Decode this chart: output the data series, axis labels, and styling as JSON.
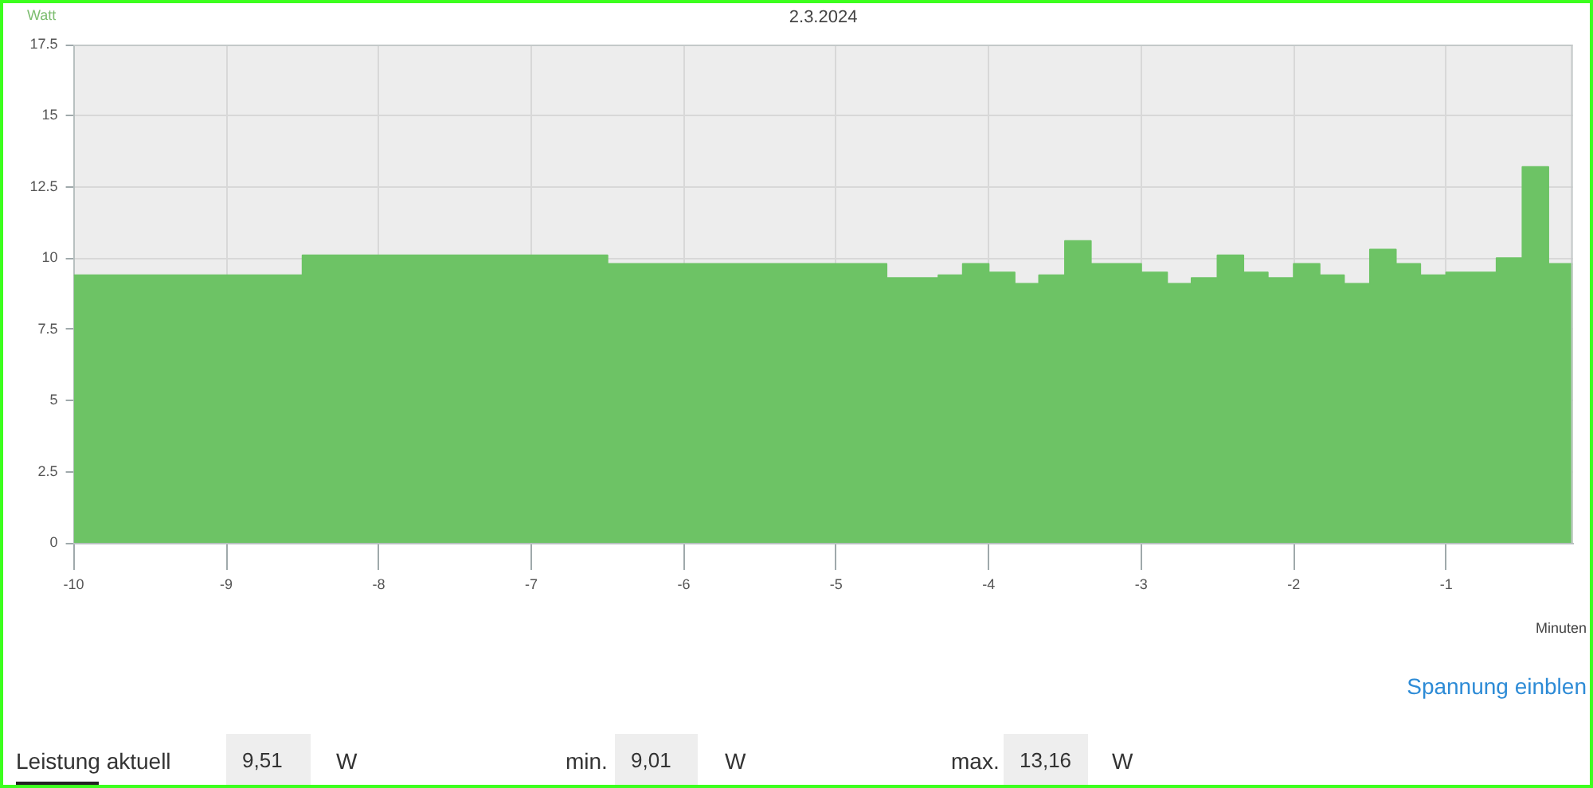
{
  "chart_data": {
    "type": "area",
    "title": "2.3.2024",
    "ylabel": "Watt",
    "xlabel": "Minuten",
    "x": [
      -10,
      -8.5,
      -8.5,
      -6.5,
      -6.5,
      -4.67,
      -4.67,
      -4.33,
      -4.33,
      -4.17,
      -4.17,
      -4,
      -4,
      -3.83,
      -3.83,
      -3.67,
      -3.67,
      -3.5,
      -3.5,
      -3.33,
      -3.33,
      -3,
      -3,
      -2.83,
      -2.83,
      -2.67,
      -2.67,
      -2.5,
      -2.5,
      -2.33,
      -2.33,
      -2.17,
      -2.17,
      -2,
      -2,
      -1.83,
      -1.83,
      -1.67,
      -1.67,
      -1.5,
      -1.5,
      -1.33,
      -1.33,
      -1.17,
      -1.17,
      -1,
      -1,
      -0.67,
      -0.67,
      -0.5,
      -0.5,
      -0.33,
      -0.33,
      -0.17
    ],
    "values": [
      9.4,
      9.4,
      10.1,
      10.1,
      9.8,
      9.8,
      9.3,
      9.3,
      9.4,
      9.4,
      9.8,
      9.8,
      9.5,
      9.5,
      9.1,
      9.1,
      9.4,
      9.4,
      10.6,
      10.6,
      9.8,
      9.8,
      9.5,
      9.5,
      9.1,
      9.1,
      9.3,
      9.3,
      10.1,
      10.1,
      9.5,
      9.5,
      9.3,
      9.3,
      9.8,
      9.8,
      9.4,
      9.4,
      9.1,
      9.1,
      10.3,
      10.3,
      9.8,
      9.8,
      9.4,
      9.4,
      9.5,
      9.5,
      10.0,
      10.0,
      13.2,
      13.2,
      9.8,
      9.8
    ],
    "color": "#6dc365",
    "xlim": [
      -10,
      -0.17
    ],
    "xticks": [
      -10,
      -9,
      -8,
      -7,
      -6,
      -5,
      -4,
      -3,
      -2,
      -1
    ],
    "ylim": [
      0,
      17.5
    ],
    "yticks": [
      0,
      2.5,
      5,
      7.5,
      10,
      12.5,
      15,
      17.5
    ],
    "grid": true,
    "annotations": [
      "Spannung einblen",
      "Leistung aktuell",
      "9,51",
      "W",
      "min.",
      "9,01",
      "W",
      "max.",
      "13,16",
      "W"
    ]
  }
}
